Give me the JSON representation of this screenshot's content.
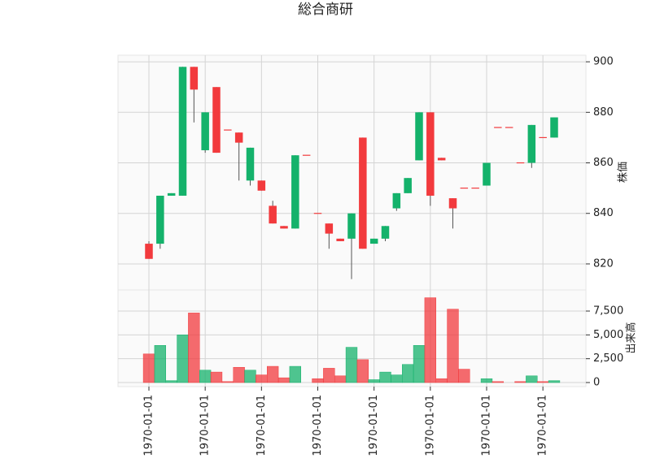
{
  "chart_data": {
    "type": "candlestick",
    "title": "総合商研",
    "categories": [
      "1970-01-01",
      null,
      null,
      null,
      null,
      "1970-01-01",
      null,
      null,
      null,
      null,
      "1970-01-01",
      null,
      null,
      null,
      null,
      "1970-01-01",
      null,
      null,
      null,
      null,
      "1970-01-01",
      null,
      null,
      null,
      null,
      "1970-01-01",
      null,
      null,
      null,
      null,
      "1970-01-01",
      null,
      null,
      null,
      null,
      "1970-01-01",
      null
    ],
    "open": [
      828,
      828,
      847,
      847,
      898,
      865,
      890,
      873,
      872,
      853,
      853,
      843,
      835,
      834,
      863,
      840,
      836,
      830,
      830,
      870,
      828,
      830,
      842,
      848,
      861,
      880,
      862,
      846,
      850,
      850,
      851,
      874,
      874,
      860,
      860,
      870,
      870
    ],
    "high": [
      829,
      847,
      848,
      898,
      898,
      880,
      890,
      873,
      872,
      866,
      853,
      845,
      835,
      863,
      863,
      840,
      836,
      830,
      840,
      870,
      830,
      835,
      848,
      854,
      880,
      880,
      862,
      846,
      850,
      850,
      860,
      874,
      874,
      860,
      875,
      870,
      878
    ],
    "low": [
      822,
      826,
      847,
      847,
      876,
      864,
      864,
      873,
      853,
      851,
      849,
      836,
      834,
      834,
      863,
      840,
      826,
      829,
      814,
      826,
      828,
      829,
      841,
      848,
      861,
      843,
      861,
      834,
      850,
      850,
      851,
      874,
      874,
      860,
      858,
      870,
      870
    ],
    "close": [
      822,
      847,
      848,
      898,
      889,
      880,
      864,
      873,
      868,
      866,
      849,
      836,
      834,
      863,
      863,
      840,
      832,
      829,
      840,
      826,
      830,
      835,
      848,
      854,
      880,
      847,
      861,
      842,
      850,
      850,
      860,
      874,
      874,
      860,
      875,
      870,
      878
    ],
    "up_color": "#14b26b",
    "down_color": "#f23a3d",
    "ylim": [
      809.7,
      902.6
    ],
    "yticks": [
      820,
      840,
      860,
      880,
      900
    ],
    "ylabel": "株価",
    "grid": true,
    "volume": {
      "label": "出来高",
      "values": [
        3000,
        3900,
        200,
        5000,
        7300,
        1300,
        1100,
        100,
        1600,
        1300,
        800,
        1700,
        500,
        1700,
        0,
        400,
        1500,
        700,
        3700,
        2400,
        300,
        1100,
        800,
        1900,
        3900,
        8900,
        400,
        7700,
        1400,
        0,
        400,
        100,
        0,
        100,
        700,
        100,
        200
      ],
      "ylim": [
        -426,
        9717
      ],
      "yticks": [
        0,
        {
          "value": 2500,
          "label": "2,500"
        },
        {
          "value": 5000,
          "label": "5,000"
        },
        {
          "value": 7500,
          "label": "7,500"
        }
      ]
    }
  }
}
